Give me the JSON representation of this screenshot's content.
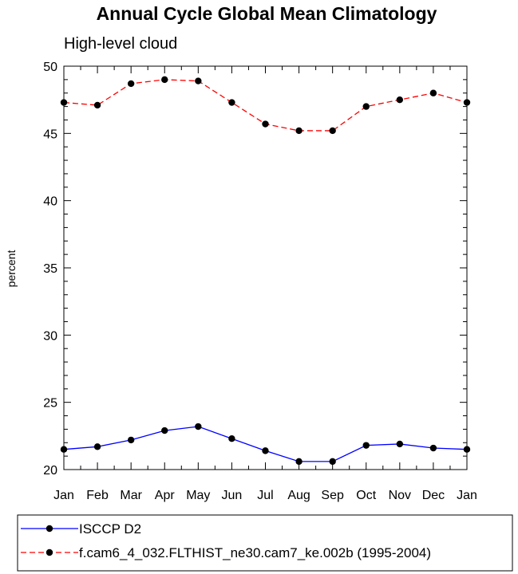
{
  "chart_data": {
    "type": "line",
    "title": "Annual Cycle Global Mean Climatology",
    "subtitle": "High-level cloud",
    "xlabel": "",
    "ylabel": "percent",
    "categories": [
      "Jan",
      "Feb",
      "Mar",
      "Apr",
      "May",
      "Jun",
      "Jul",
      "Aug",
      "Sep",
      "Oct",
      "Nov",
      "Dec",
      "Jan"
    ],
    "ylim": [
      20,
      50
    ],
    "yticks": [
      20,
      25,
      30,
      35,
      40,
      45,
      50
    ],
    "grid": false,
    "legend_position": "bottom",
    "series": [
      {
        "name": "ISCCP D2",
        "color": "#0000ff",
        "dash": "solid",
        "marker": "filled-circle",
        "values": [
          21.5,
          21.7,
          22.2,
          22.9,
          23.2,
          22.3,
          21.4,
          20.6,
          20.6,
          21.8,
          21.9,
          21.6,
          21.5
        ]
      },
      {
        "name": "f.cam6_4_032.FLTHIST_ne30.cam7_ke.002b (1995-2004)",
        "color": "#ff0000",
        "dash": "dashed",
        "marker": "filled-circle",
        "values": [
          47.3,
          47.1,
          48.7,
          49.0,
          48.9,
          47.3,
          45.7,
          45.2,
          45.2,
          47.0,
          47.5,
          48.0,
          47.3
        ]
      }
    ]
  }
}
